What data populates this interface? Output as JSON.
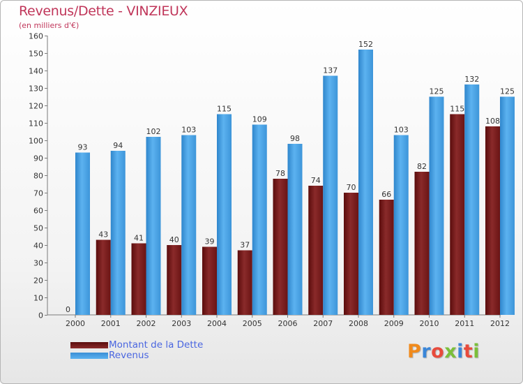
{
  "title": "Revenus/Dette - VINZIEUX",
  "subtitle": "(en milliers d'€)",
  "logo": {
    "text": "Proxiti",
    "letter_colors": [
      "#f08a1c",
      "#3a86d8",
      "#e84b3c",
      "#7bbf3a",
      "#3a86d8",
      "#e84b3c",
      "#7bbf3a"
    ]
  },
  "colors": {
    "dette": "#7a1a1a",
    "revenus": "#4aa3e6",
    "title": "#c0365a",
    "legend_text": "#4a66e0"
  },
  "chart_data": {
    "type": "bar",
    "title": "Revenus/Dette - VINZIEUX",
    "subtitle": "(en milliers d'€)",
    "xlabel": "",
    "ylabel": "",
    "ylim": [
      0,
      160
    ],
    "ytick_step": 10,
    "grid": false,
    "legend_position": "bottom-left",
    "categories": [
      "2000",
      "2001",
      "2002",
      "2003",
      "2004",
      "2005",
      "2006",
      "2007",
      "2008",
      "2009",
      "2010",
      "2011",
      "2012"
    ],
    "series": [
      {
        "name": "Montant de la Dette",
        "color": "#7a1a1a",
        "values": [
          0,
          43,
          41,
          40,
          39,
          37,
          78,
          74,
          70,
          66,
          82,
          115,
          108
        ]
      },
      {
        "name": "Revenus",
        "color": "#4aa3e6",
        "values": [
          93,
          94,
          102,
          103,
          115,
          109,
          98,
          137,
          152,
          103,
          125,
          132,
          125
        ]
      }
    ]
  }
}
